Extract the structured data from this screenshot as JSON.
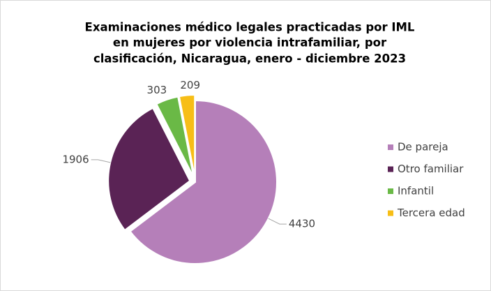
{
  "chart_data": {
    "type": "pie",
    "title": [
      "Examinaciones médico legales practicadas por IML",
      "en mujeres por violencia intrafamiliar, por",
      "clasificación, Nicaragua, enero - diciembre 2023"
    ],
    "categories": [
      "De pareja",
      "Otro familiar",
      "Infantil",
      "Tercera edad"
    ],
    "values": [
      4430,
      1906,
      303,
      209
    ],
    "colors": [
      "#b57fb9",
      "#5a2355",
      "#6ab946",
      "#f7be16"
    ],
    "legend": "right"
  }
}
